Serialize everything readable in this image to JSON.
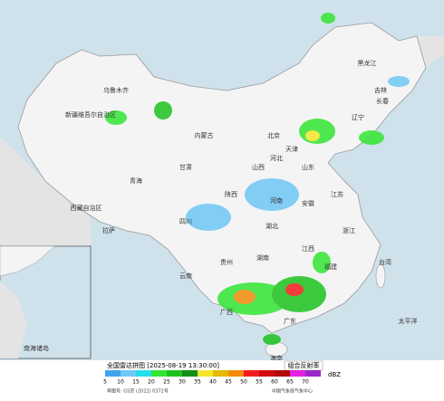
{
  "header": {
    "title": "全国雷达拼图 [2025-08-19 13:30:00]",
    "product": "组合反射率",
    "unit": "dBZ"
  },
  "legend": {
    "levels": [
      {
        "value": 5,
        "color": "#40a4ee"
      },
      {
        "value": 10,
        "color": "#6ec7f5"
      },
      {
        "value": 15,
        "color": "#1fe0e8"
      },
      {
        "value": 20,
        "color": "#33e533"
      },
      {
        "value": 25,
        "color": "#1ec21e"
      },
      {
        "value": 30,
        "color": "#148f14"
      },
      {
        "value": 35,
        "color": "#f3e52c"
      },
      {
        "value": 40,
        "color": "#e6b800"
      },
      {
        "value": 45,
        "color": "#f58c0c"
      },
      {
        "value": 50,
        "color": "#f51c1c"
      },
      {
        "value": 55,
        "color": "#d10b0b"
      },
      {
        "value": 60,
        "color": "#b00808"
      },
      {
        "value": 65,
        "color": "#e520e5"
      },
      {
        "value": 70,
        "color": "#9b29c9"
      }
    ]
  },
  "labels": [
    "乌鲁木齐",
    "新疆维吾尔自治区",
    "西藏自治区",
    "拉萨",
    "青海",
    "甘肃",
    "内蒙古",
    "黑龙江",
    "吉林",
    "长春",
    "辽宁",
    "北京",
    "天津",
    "河北",
    "山西",
    "山东",
    "河南",
    "陕西",
    "四川",
    "湖北",
    "湖南",
    "安徽",
    "江苏",
    "浙江",
    "江西",
    "福建",
    "贵州",
    "云南",
    "广西",
    "广东",
    "台湾",
    "海南",
    "太平洋",
    "南海诸岛"
  ],
  "footer": {
    "approval": "审图号: GS京 (2022) 0372号",
    "source": "中国气象局气象中心"
  }
}
